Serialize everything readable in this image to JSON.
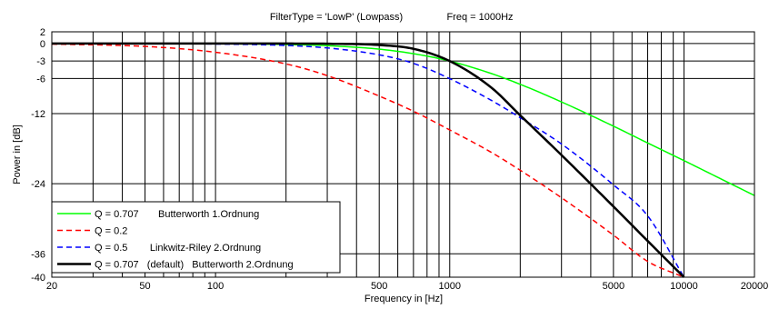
{
  "chart_data": {
    "type": "line",
    "title": "FilterType = 'LowP' (Lowpass)",
    "subtitle": "Freq = 1000Hz",
    "xlabel": "Frequency in [Hz]",
    "ylabel": "Power in [dB]",
    "x_scale": "log",
    "xlim": [
      20,
      20000
    ],
    "ylim": [
      -40,
      2
    ],
    "grid": true,
    "legend_position": "bottom-left",
    "x_ticks": [
      20,
      50,
      100,
      500,
      1000,
      5000,
      10000,
      20000
    ],
    "x_tick_labels": [
      "20",
      "50",
      "100",
      "500",
      "1000",
      "5000",
      "10000",
      "20000"
    ],
    "y_ticks": [
      2,
      0,
      -3,
      -6,
      -12,
      -24,
      -36,
      -40
    ],
    "y_tick_labels": [
      "2",
      "0",
      "-3",
      "-6",
      "-12",
      "-24",
      "-36",
      "-40"
    ],
    "x_grid": [
      30,
      40,
      60,
      70,
      80,
      90,
      200,
      300,
      400,
      600,
      700,
      800,
      900,
      2000,
      3000,
      4000,
      6000,
      7000,
      8000,
      9000
    ],
    "series": [
      {
        "name": "Q = 0.707       Butterworth 1.Ordnung",
        "color": "#00ff00",
        "width": 1.5,
        "dash": "",
        "x": [
          20,
          50,
          100,
          200,
          300,
          500,
          700,
          1000,
          1500,
          2000,
          3000,
          5000,
          7000,
          10000,
          15000,
          20000
        ],
        "y": [
          0,
          0,
          -0.04,
          -0.17,
          -0.37,
          -0.97,
          -1.74,
          -3.01,
          -5.12,
          -6.99,
          -10.0,
          -14.15,
          -17.03,
          -20.04,
          -23.54,
          -26.02
        ]
      },
      {
        "name": "Q = 0.2",
        "color": "#ff0000",
        "width": 1.5,
        "dash": "6,4",
        "x": [
          20,
          50,
          100,
          200,
          300,
          500,
          700,
          1000,
          1500,
          2000,
          3000,
          5000,
          7000,
          10000
        ],
        "y": [
          -0.1,
          -0.5,
          -1.5,
          -3.5,
          -5.5,
          -9.0,
          -11.6,
          -14.8,
          -18.6,
          -21.7,
          -26.4,
          -32.8,
          -37.3,
          -40
        ]
      },
      {
        "name": "Q = 0.5        Linkwitz-Riley 2.Ordnung",
        "color": "#0000ff",
        "width": 1.5,
        "dash": "6,4",
        "x": [
          20,
          50,
          100,
          200,
          300,
          500,
          700,
          1000,
          1500,
          2000,
          3000,
          5000,
          7000,
          10000
        ],
        "y": [
          0,
          -0.02,
          -0.09,
          -0.34,
          -0.76,
          -1.94,
          -3.4,
          -6.02,
          -9.7,
          -12.7,
          -17.2,
          -24.2,
          -29.5,
          -40
        ]
      },
      {
        "name": "Q = 0.707   (default)   Butterworth 2.Ordnung",
        "color": "#000000",
        "width": 2.5,
        "dash": "",
        "x": [
          20,
          50,
          100,
          200,
          300,
          500,
          700,
          1000,
          1500,
          2000,
          3000,
          5000,
          7000,
          10000
        ],
        "y": [
          0,
          0,
          0,
          -0.01,
          -0.04,
          -0.26,
          -0.91,
          -3.01,
          -7.5,
          -12.3,
          -19.1,
          -27.9,
          -33.8,
          -40
        ]
      }
    ]
  }
}
